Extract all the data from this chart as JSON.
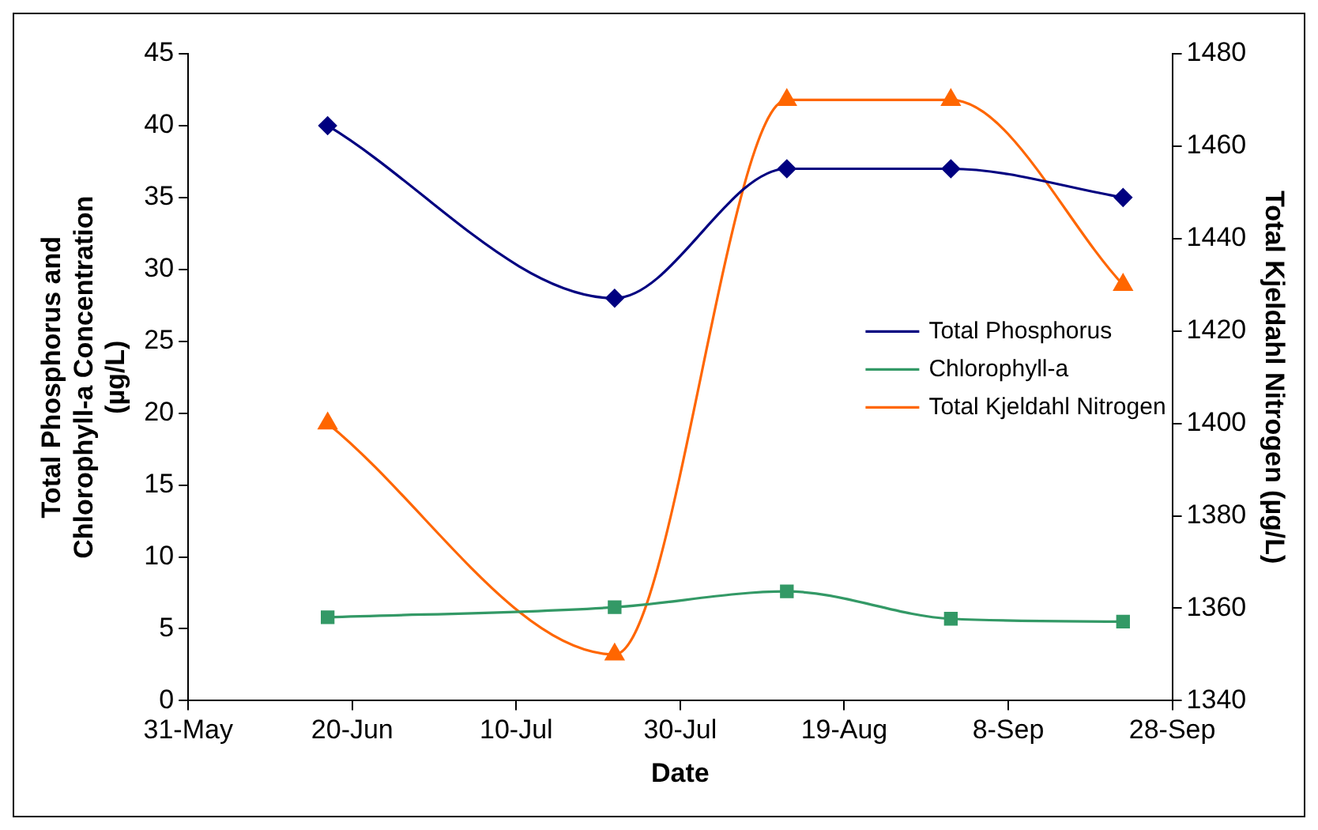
{
  "chart_data": {
    "type": "line",
    "xlabel": "Date",
    "ylabel": "Total Phosphorus and\nChlorophyll-a Concentration\n(µg/L)",
    "y2label": "Total Kjeldahl Nitrogen (µg/L)",
    "x": [
      "--06-17",
      "--07-22",
      "--08-12",
      "--09-01",
      "--09-22"
    ],
    "series": [
      {
        "name": "Total Phosphorus",
        "color": "#000080",
        "marker": "diamond",
        "values": [
          40,
          28,
          37,
          37,
          35
        ]
      },
      {
        "name": "Chlorophyll-a",
        "color": "#339966",
        "marker": "square",
        "values": [
          5.8,
          6.5,
          7.6,
          5.7,
          5.5
        ]
      },
      {
        "name": "Total Kjeldahl Nitrogen",
        "color": "#ff6600",
        "marker": "triangle",
        "axis": "y2",
        "values": [
          1400,
          1350,
          1470,
          1470,
          1430
        ]
      }
    ],
    "xlim": [
      "--05-31",
      "--09-28"
    ],
    "xticks": [
      {
        "value": "--05-31",
        "label": "31-May"
      },
      {
        "value": "--06-20",
        "label": "20-Jun"
      },
      {
        "value": "--07-10",
        "label": "10-Jul"
      },
      {
        "value": "--07-30",
        "label": "30-Jul"
      },
      {
        "value": "--08-19",
        "label": "19-Aug"
      },
      {
        "value": "--09-08",
        "label": "8-Sep"
      },
      {
        "value": "--09-28",
        "label": "28-Sep"
      }
    ],
    "ylim": [
      0,
      45
    ],
    "yticks": [
      0,
      5,
      10,
      15,
      20,
      25,
      30,
      35,
      40,
      45
    ],
    "y2lim": [
      1340,
      1480
    ],
    "y2ticks": [
      1340,
      1360,
      1380,
      1400,
      1420,
      1440,
      1460,
      1480
    ],
    "grid": false,
    "legend": "right"
  }
}
